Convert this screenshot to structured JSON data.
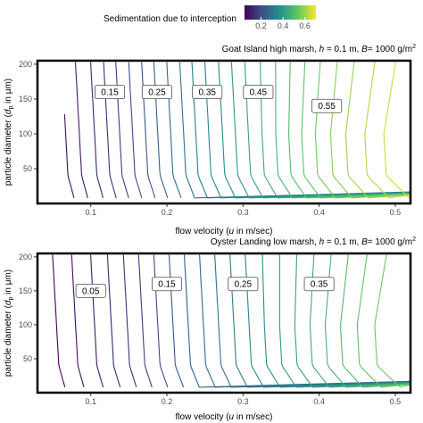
{
  "legend": {
    "title": "Sedimentation due to interception",
    "ticks": [
      "0.2",
      "0.4",
      "0.6"
    ],
    "tick_values": [
      0.2,
      0.4,
      0.6
    ],
    "range": [
      0.05,
      0.7
    ],
    "colors": [
      "#440154",
      "#3b528b",
      "#21918c",
      "#5ec962",
      "#fde725"
    ]
  },
  "chart_data": [
    {
      "type": "contour",
      "title_prefix": "Goat Island high marsh, ",
      "title_h": "h",
      "title_h_val": " = 0.1 m, ",
      "title_B": "B",
      "title_B_val": "= 1000 g/m",
      "title_B_exp": "2",
      "x_ticks": [
        "0.1",
        "0.2",
        "0.3",
        "0.4",
        "0.5"
      ],
      "x_tick_values": [
        0.1,
        0.2,
        0.3,
        0.4,
        0.5
      ],
      "y_ticks": [
        "50",
        "100",
        "150",
        "200"
      ],
      "y_tick_values": [
        50,
        100,
        150,
        200
      ],
      "xlim": [
        0.03,
        0.52
      ],
      "ylim": [
        0,
        205
      ],
      "xlabel_prefix": "flow velocity (",
      "xlabel_var": "u",
      "xlabel_suffix": " in m/sec)",
      "ylabel_prefix": "particle  diameter (",
      "ylabel_var": "d",
      "ylabel_sub": "p",
      "ylabel_suffix": " in μm)",
      "contour_labels": [
        {
          "text": "0.15",
          "x": 0.125,
          "y": 160
        },
        {
          "text": "0.25",
          "x": 0.187,
          "y": 160
        },
        {
          "text": "0.35",
          "x": 0.253,
          "y": 160
        },
        {
          "text": "0.45",
          "x": 0.32,
          "y": 160
        },
        {
          "text": "0.55",
          "x": 0.41,
          "y": 140
        }
      ],
      "contour_levels": [
        0.075,
        0.1,
        0.125,
        0.15,
        0.175,
        0.2,
        0.225,
        0.25,
        0.275,
        0.3,
        0.325,
        0.35,
        0.375,
        0.4,
        0.425,
        0.45,
        0.475,
        0.5,
        0.525,
        0.55,
        0.575,
        0.6,
        0.625,
        0.65
      ],
      "contour_base_x": [
        0.062,
        0.08,
        0.1,
        0.117,
        0.133,
        0.15,
        0.167,
        0.183,
        0.2,
        0.217,
        0.233,
        0.25,
        0.268,
        0.285,
        0.302,
        0.32,
        0.338,
        0.355,
        0.372,
        0.39,
        0.41,
        0.43,
        0.455,
        0.48
      ]
    },
    {
      "type": "contour",
      "title_prefix": "Oyster Landing low marsh, ",
      "title_h": "h",
      "title_h_val": " = 0.1 m, ",
      "title_B": "B",
      "title_B_val": "= 1000 g/m",
      "title_B_exp": "2",
      "x_ticks": [
        "0.1",
        "0.2",
        "0.3",
        "0.4",
        "0.5"
      ],
      "x_tick_values": [
        0.1,
        0.2,
        0.3,
        0.4,
        0.5
      ],
      "y_ticks": [
        "50",
        "100",
        "150",
        "200"
      ],
      "y_tick_values": [
        50,
        100,
        150,
        200
      ],
      "xlim": [
        0.03,
        0.52
      ],
      "ylim": [
        0,
        205
      ],
      "xlabel_prefix": "flow velocity (",
      "xlabel_var": "u",
      "xlabel_suffix": " in m/sec)",
      "ylabel_prefix": "particle  diameter (",
      "ylabel_var": "d",
      "ylabel_sub": "p",
      "ylabel_suffix": " in μm)",
      "contour_labels": [
        {
          "text": "0.05",
          "x": 0.1,
          "y": 150
        },
        {
          "text": "0.15",
          "x": 0.2,
          "y": 160
        },
        {
          "text": "0.25",
          "x": 0.3,
          "y": 160
        },
        {
          "text": "0.35",
          "x": 0.4,
          "y": 160
        }
      ],
      "contour_levels": [
        0.05,
        0.075,
        0.1,
        0.125,
        0.15,
        0.175,
        0.2,
        0.225,
        0.25,
        0.275,
        0.3,
        0.325,
        0.35,
        0.375,
        0.4,
        0.425,
        0.45,
        0.475,
        0.5,
        0.525,
        0.55
      ],
      "contour_base_x": [
        0.05,
        0.075,
        0.1,
        0.122,
        0.143,
        0.163,
        0.183,
        0.203,
        0.223,
        0.243,
        0.263,
        0.283,
        0.303,
        0.323,
        0.343,
        0.363,
        0.383,
        0.403,
        0.423,
        0.445,
        0.468
      ]
    }
  ]
}
